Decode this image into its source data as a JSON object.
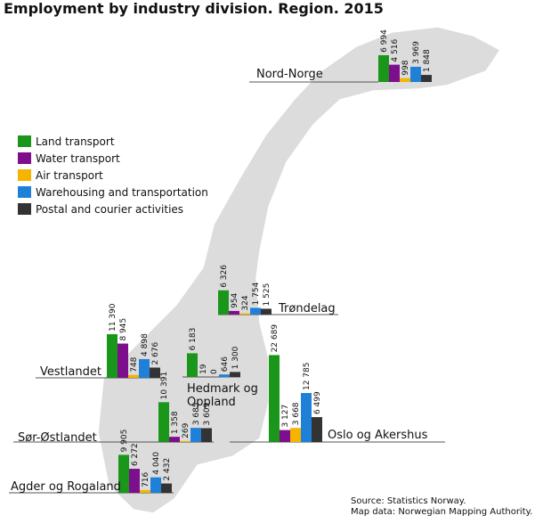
{
  "chart_data": {
    "type": "bar",
    "title": "Employment by industry division. Region. 2015",
    "categories": [
      "Nord-Norge",
      "Trøndelag",
      "Vestlandet",
      "Hedmark og Oppland",
      "Sør-Østlandet",
      "Oslo og Akershus",
      "Agder og Rogaland"
    ],
    "series": [
      {
        "name": "Land transport",
        "color": "#1a961a",
        "values": [
          6994,
          6326,
          11390,
          6183,
          10391,
          22689,
          9905
        ],
        "value_labels": [
          "6 994",
          "6 326",
          "11 390",
          "6 183",
          "10 391",
          "22 689",
          "9 905"
        ]
      },
      {
        "name": "Water transport",
        "color": "#7d0f8c",
        "values": [
          4516,
          954,
          8945,
          19,
          1358,
          3127,
          6272
        ],
        "value_labels": [
          "4 516",
          "954",
          "8 945",
          "19",
          "1 358",
          "3 127",
          "6 272"
        ]
      },
      {
        "name": "Air transport",
        "color": "#f5b400",
        "values": [
          998,
          324,
          748,
          0,
          269,
          3668,
          716
        ],
        "value_labels": [
          "998",
          "324",
          "748",
          "0",
          "269",
          "3 668",
          "716"
        ]
      },
      {
        "name": "Warehousing and transportation",
        "color": "#1f80d8",
        "values": [
          3969,
          1754,
          4898,
          646,
          3685,
          12785,
          4040
        ],
        "value_labels": [
          "3 969",
          "1 754",
          "4 898",
          "646",
          "3 685",
          "12 785",
          "4 040"
        ]
      },
      {
        "name": "Postal and courier activities",
        "color": "#333333",
        "values": [
          1848,
          1525,
          2676,
          1300,
          3609,
          6499,
          2432
        ],
        "value_labels": [
          "1 848",
          "1 525",
          "2 676",
          "1 300",
          "3 609",
          "6 499",
          "2 432"
        ]
      }
    ],
    "source": "Source: Statistics Norway.",
    "map_source": "Map data: Norwegian Mapping Authority."
  }
}
